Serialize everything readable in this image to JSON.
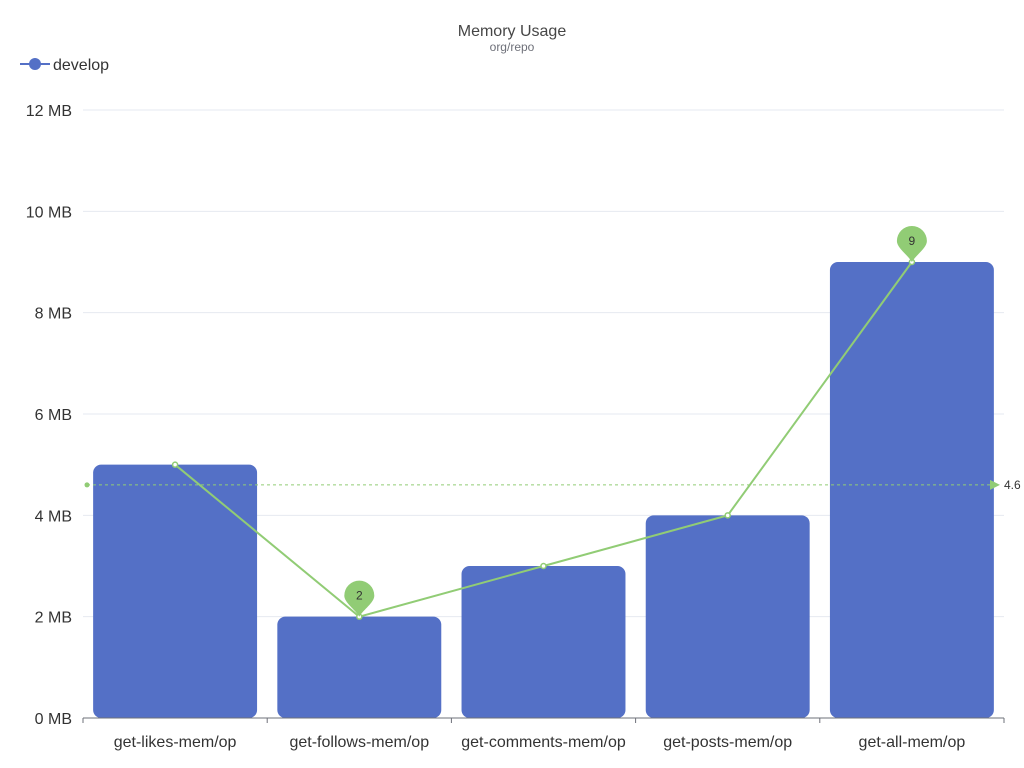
{
  "chart_data": {
    "type": "bar",
    "title": "Memory Usage",
    "subtitle": "org/repo",
    "categories": [
      "get-likes-mem/op",
      "get-follows-mem/op",
      "get-comments-mem/op",
      "get-posts-mem/op",
      "get-all-mem/op"
    ],
    "series": [
      {
        "name": "develop",
        "type": "bar",
        "values": [
          5,
          2,
          3,
          4,
          9
        ]
      }
    ],
    "overlay_line": {
      "values": [
        5,
        2,
        3,
        4,
        9
      ],
      "max_label": "9",
      "min_label": "2",
      "average_label": "4.6",
      "average": 4.6
    },
    "y_axis": {
      "min": 0,
      "max": 12,
      "ticks": [
        0,
        2,
        4,
        6,
        8,
        10,
        12
      ],
      "tick_labels": [
        "0 MB",
        "2 MB",
        "4 MB",
        "6 MB",
        "8 MB",
        "10 MB",
        "12 MB"
      ]
    },
    "grid": true,
    "legend": "top-left",
    "colors": {
      "bar": "#5470c6",
      "line": "#91cc75",
      "grid": "#e6e9f0",
      "axis": "#6e7079"
    }
  }
}
